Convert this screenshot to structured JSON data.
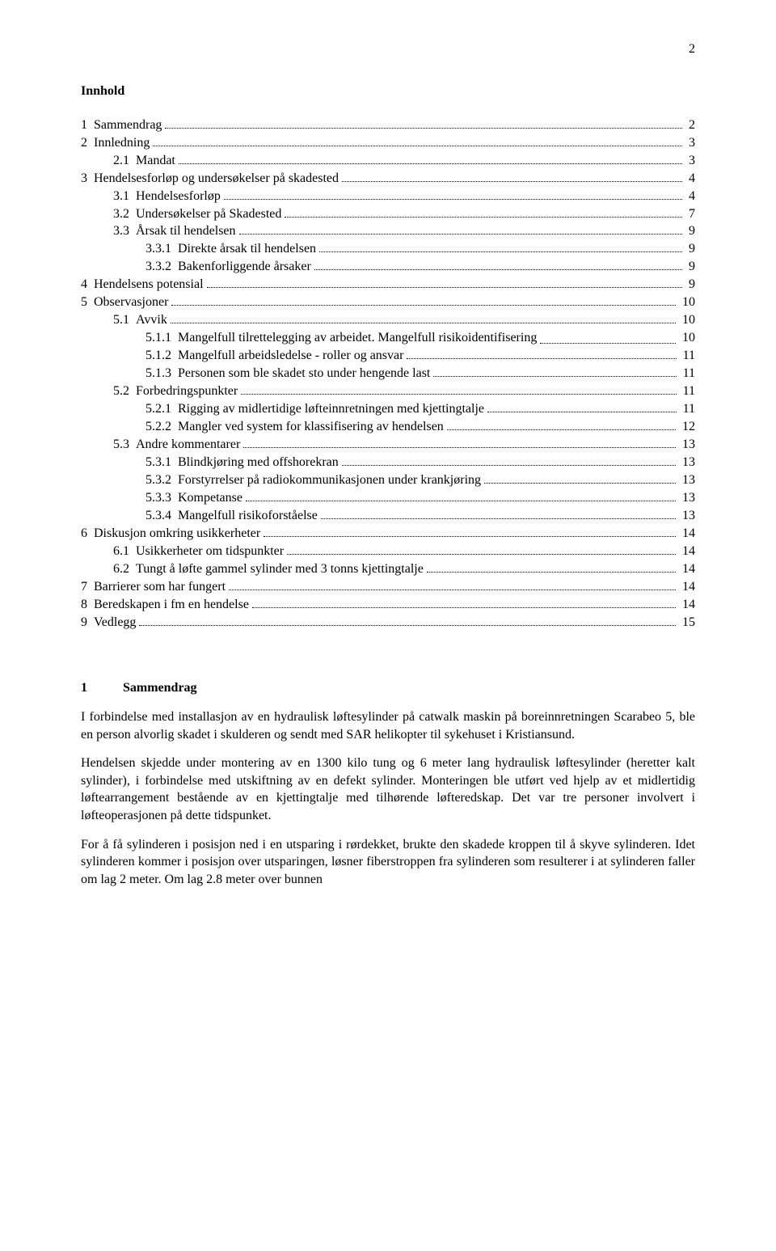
{
  "page_number_top": "2",
  "title": "Innhold",
  "toc": [
    {
      "indent": 0,
      "num": "1",
      "label": "Sammendrag",
      "page": "2"
    },
    {
      "indent": 0,
      "num": "2",
      "label": "Innledning",
      "page": "3"
    },
    {
      "indent": 1,
      "num": "2.1",
      "label": "Mandat",
      "page": "3"
    },
    {
      "indent": 0,
      "num": "3",
      "label": "Hendelsesforløp og undersøkelser på skadested",
      "page": "4"
    },
    {
      "indent": 1,
      "num": "3.1",
      "label": "Hendelsesforløp",
      "page": "4"
    },
    {
      "indent": 1,
      "num": "3.2",
      "label": "Undersøkelser på Skadested",
      "page": "7"
    },
    {
      "indent": 1,
      "num": "3.3",
      "label": "Årsak til hendelsen",
      "page": "9"
    },
    {
      "indent": 2,
      "num": "3.3.1",
      "label": "Direkte årsak til hendelsen",
      "page": "9"
    },
    {
      "indent": 2,
      "num": "3.3.2",
      "label": "Bakenforliggende årsaker",
      "page": "9"
    },
    {
      "indent": 0,
      "num": "4",
      "label": "Hendelsens potensial",
      "page": "9"
    },
    {
      "indent": 0,
      "num": "5",
      "label": "Observasjoner",
      "page": "10"
    },
    {
      "indent": 1,
      "num": "5.1",
      "label": "Avvik",
      "page": "10"
    },
    {
      "indent": 2,
      "num": "5.1.1",
      "label": "Mangelfull tilrettelegging av arbeidet. Mangelfull risikoidentifisering",
      "page": "10"
    },
    {
      "indent": 2,
      "num": "5.1.2",
      "label": "Mangelfull arbeidsledelse - roller og ansvar",
      "page": "11"
    },
    {
      "indent": 2,
      "num": "5.1.3",
      "label": "Personen som ble skadet sto under hengende last",
      "page": "11"
    },
    {
      "indent": 1,
      "num": "5.2",
      "label": "Forbedringspunkter",
      "page": "11"
    },
    {
      "indent": 2,
      "num": "5.2.1",
      "label": "Rigging av midlertidige løfteinnretningen med kjettingtalje",
      "page": "11"
    },
    {
      "indent": 2,
      "num": "5.2.2",
      "label": "Mangler ved system for klassifisering av hendelsen",
      "page": "12"
    },
    {
      "indent": 1,
      "num": "5.3",
      "label": "Andre kommentarer",
      "page": "13"
    },
    {
      "indent": 2,
      "num": "5.3.1",
      "label": "Blindkjøring med offshorekran",
      "page": "13"
    },
    {
      "indent": 2,
      "num": "5.3.2",
      "label": "Forstyrrelser på radiokommunikasjonen under krankjøring",
      "page": "13"
    },
    {
      "indent": 2,
      "num": "5.3.3",
      "label": "Kompetanse",
      "page": "13"
    },
    {
      "indent": 2,
      "num": "5.3.4",
      "label": "Mangelfull risikoforståelse",
      "page": "13"
    },
    {
      "indent": 0,
      "num": "6",
      "label": "Diskusjon omkring usikkerheter",
      "page": "14"
    },
    {
      "indent": 1,
      "num": "6.1",
      "label": "Usikkerheter om tidspunkter",
      "page": "14"
    },
    {
      "indent": 1,
      "num": "6.2",
      "label": "Tungt å løfte gammel sylinder med 3 tonns kjettingtalje",
      "page": "14"
    },
    {
      "indent": 0,
      "num": "7",
      "label": "Barrierer som har fungert",
      "page": "14"
    },
    {
      "indent": 0,
      "num": "8",
      "label": "Beredskapen i fm en hendelse",
      "page": "14"
    },
    {
      "indent": 0,
      "num": "9",
      "label": "Vedlegg",
      "page": "15"
    }
  ],
  "section": {
    "num": "1",
    "title": "Sammendrag",
    "paragraphs": [
      "I forbindelse med installasjon av en hydraulisk løftesylinder på catwalk maskin på boreinnretningen Scarabeo 5, ble en person alvorlig skadet i skulderen og sendt med SAR helikopter til sykehuset i Kristiansund.",
      "Hendelsen skjedde under montering av en 1300 kilo tung og 6 meter lang hydraulisk løftesylinder (heretter kalt sylinder), i forbindelse med utskiftning av en defekt sylinder. Monteringen ble utført ved hjelp av et midlertidig løftearrangement bestående av en kjettingtalje med tilhørende løfteredskap. Det var tre personer involvert i løfteoperasjonen på dette tidspunket.",
      "For å få sylinderen i posisjon ned i en utsparing i rørdekket, brukte den skadede kroppen til å skyve sylinderen. Idet sylinderen kommer i posisjon over utsparingen, løsner fiberstroppen fra sylinderen som resulterer i at sylinderen faller om lag 2 meter. Om lag 2.8 meter over bunnen"
    ]
  }
}
